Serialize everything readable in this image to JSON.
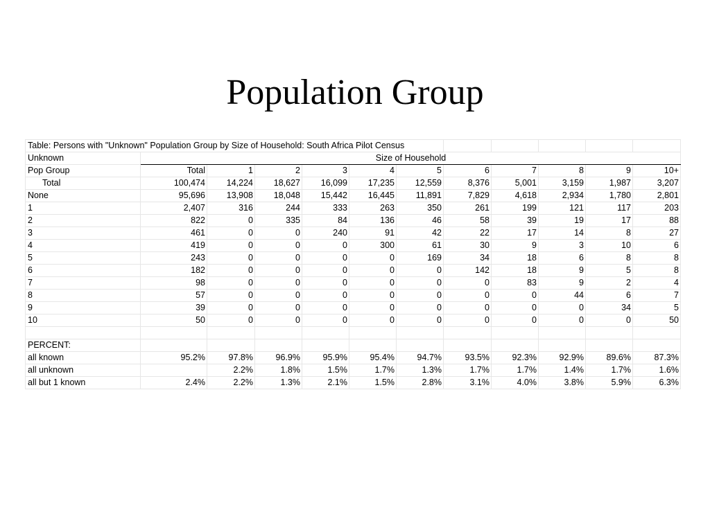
{
  "title": "Population Group",
  "table": {
    "caption": "Table: Persons with \"Unknown\" Population Group by Size of Household: South Africa Pilot Census",
    "header_left": "Unknown",
    "header_group": "Size of Household",
    "row_header_label": "Pop Group",
    "columns": [
      "Total",
      "1",
      "2",
      "3",
      "4",
      "5",
      "6",
      "7",
      "8",
      "9",
      "10+"
    ],
    "rows": [
      {
        "label": "Total",
        "values": [
          "100,474",
          "14,224",
          "18,627",
          "16,099",
          "17,235",
          "12,559",
          "8,376",
          "5,001",
          "3,159",
          "1,987",
          "3,207"
        ]
      },
      {
        "label": "None",
        "values": [
          "95,696",
          "13,908",
          "18,048",
          "15,442",
          "16,445",
          "11,891",
          "7,829",
          "4,618",
          "2,934",
          "1,780",
          "2,801"
        ]
      },
      {
        "label": "1",
        "values": [
          "2,407",
          "316",
          "244",
          "333",
          "263",
          "350",
          "261",
          "199",
          "121",
          "117",
          "203"
        ]
      },
      {
        "label": "2",
        "values": [
          "822",
          "0",
          "335",
          "84",
          "136",
          "46",
          "58",
          "39",
          "19",
          "17",
          "88"
        ]
      },
      {
        "label": "3",
        "values": [
          "461",
          "0",
          "0",
          "240",
          "91",
          "42",
          "22",
          "17",
          "14",
          "8",
          "27"
        ]
      },
      {
        "label": "4",
        "values": [
          "419",
          "0",
          "0",
          "0",
          "300",
          "61",
          "30",
          "9",
          "3",
          "10",
          "6"
        ]
      },
      {
        "label": "5",
        "values": [
          "243",
          "0",
          "0",
          "0",
          "0",
          "169",
          "34",
          "18",
          "6",
          "8",
          "8"
        ]
      },
      {
        "label": "6",
        "values": [
          "182",
          "0",
          "0",
          "0",
          "0",
          "0",
          "142",
          "18",
          "9",
          "5",
          "8"
        ]
      },
      {
        "label": "7",
        "values": [
          "98",
          "0",
          "0",
          "0",
          "0",
          "0",
          "0",
          "83",
          "9",
          "2",
          "4"
        ]
      },
      {
        "label": "8",
        "values": [
          "57",
          "0",
          "0",
          "0",
          "0",
          "0",
          "0",
          "0",
          "44",
          "6",
          "7"
        ]
      },
      {
        "label": "9",
        "values": [
          "39",
          "0",
          "0",
          "0",
          "0",
          "0",
          "0",
          "0",
          "0",
          "34",
          "5"
        ]
      },
      {
        "label": "10",
        "values": [
          "50",
          "0",
          "0",
          "0",
          "0",
          "0",
          "0",
          "0",
          "0",
          "0",
          "50"
        ]
      }
    ],
    "percent_label": "PERCENT:",
    "percent_rows": [
      {
        "label": "all known",
        "values": [
          "95.2%",
          "97.8%",
          "96.9%",
          "95.9%",
          "95.4%",
          "94.7%",
          "93.5%",
          "92.3%",
          "92.9%",
          "89.6%",
          "87.3%"
        ]
      },
      {
        "label": "all unknown",
        "values": [
          "",
          "2.2%",
          "1.8%",
          "1.5%",
          "1.7%",
          "1.3%",
          "1.7%",
          "1.7%",
          "1.4%",
          "1.7%",
          "1.6%"
        ]
      },
      {
        "label": "all but 1 known",
        "values": [
          "2.4%",
          "2.2%",
          "1.3%",
          "2.1%",
          "1.5%",
          "2.8%",
          "3.1%",
          "4.0%",
          "3.8%",
          "5.9%",
          "6.3%"
        ]
      }
    ]
  }
}
